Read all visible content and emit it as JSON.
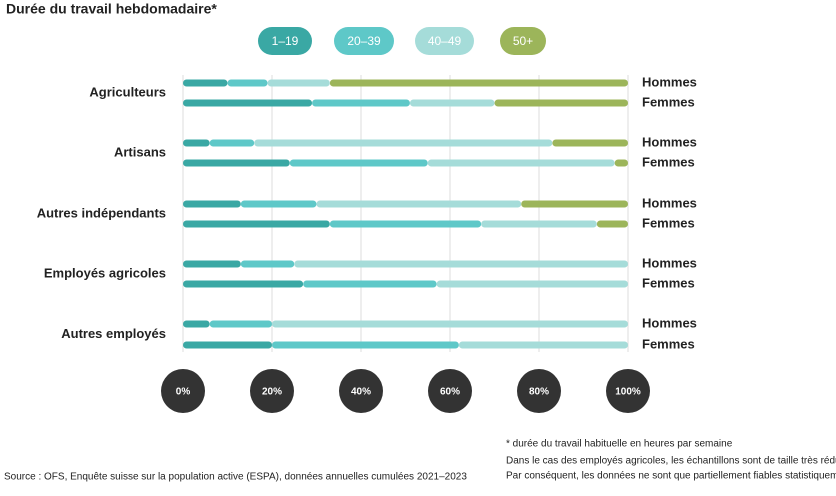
{
  "chart_data": {
    "type": "stacked-hbar",
    "title": "Durée du travail hebdomadaire*",
    "groups": [
      "Agriculteurs",
      "Artisans",
      "Autres indépendants",
      "Employés agricoles",
      "Autres employés"
    ],
    "categories": [
      "Hommes",
      "Femmes",
      "Hommes",
      "Femmes",
      "Hommes",
      "Femmes",
      "Hommes",
      "Femmes",
      "Hommes",
      "Femmes"
    ],
    "series": [
      {
        "name": "1–19",
        "color": "#3aa8a4",
        "values": [
          10,
          29,
          6,
          24,
          13,
          33,
          13,
          27,
          6,
          20
        ]
      },
      {
        "name": "20–39",
        "color": "#5ec8c8",
        "values": [
          9,
          22,
          10,
          31,
          17,
          34,
          12,
          30,
          14,
          42
        ]
      },
      {
        "name": "40–49",
        "color": "#a5dcd9",
        "values": [
          14,
          19,
          67,
          42,
          46,
          26,
          75,
          43,
          80,
          38
        ]
      },
      {
        "name": "50+",
        "color": "#9cb55a",
        "values": [
          67,
          30,
          17,
          3,
          24,
          7,
          0,
          0,
          0,
          0
        ]
      }
    ],
    "xlim": [
      0,
      100
    ],
    "xticks": [
      {
        "value": 0,
        "label": "0%"
      },
      {
        "value": 20,
        "label": "20%"
      },
      {
        "value": 40,
        "label": "40%"
      },
      {
        "value": 60,
        "label": "60%"
      },
      {
        "value": 80,
        "label": "80%"
      },
      {
        "value": 100,
        "label": "100%"
      }
    ],
    "grid": true,
    "footnote": "* durée du travail habituelle en heures par semaine",
    "notes": [
      "Dans le cas des employés agricoles, les échantillons sont de taille très réduite.",
      "Par conséquent, les données ne sont que partiellement fiables statistiquement."
    ],
    "source": "Source : OFS, Enquête suisse sur la population active (ESPA), données annuelles cumulées 2021–2023"
  }
}
